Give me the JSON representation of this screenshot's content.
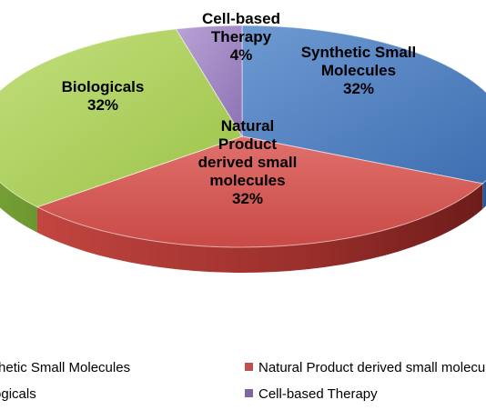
{
  "chart_data": {
    "type": "pie",
    "title": "",
    "slices": [
      {
        "name": "Synthetic Small Molecules",
        "value": 32,
        "label_lines": [
          "Synthetic Small",
          "Molecules",
          "32%"
        ],
        "color": "#4f81bd"
      },
      {
        "name": "Natural Product derived small molecules",
        "value": 32,
        "label_lines": [
          "Natural",
          "Product",
          "derived small",
          "molecules",
          "32%"
        ],
        "color": "#c0504d"
      },
      {
        "name": "Biologicals",
        "value": 32,
        "label_lines": [
          "Biologicals",
          "32%"
        ],
        "color": "#9bbb59"
      },
      {
        "name": "Cell-based Therapy",
        "value": 4,
        "label_lines": [
          "Cell-based",
          "Therapy",
          "4%"
        ],
        "color": "#8064a2"
      }
    ],
    "legend": {
      "placement": "bottom",
      "items": [
        "Synthetic Small Molecules",
        "Natural Product derived small molecules",
        "Biologicals",
        "Cell-based Therapy"
      ]
    }
  }
}
